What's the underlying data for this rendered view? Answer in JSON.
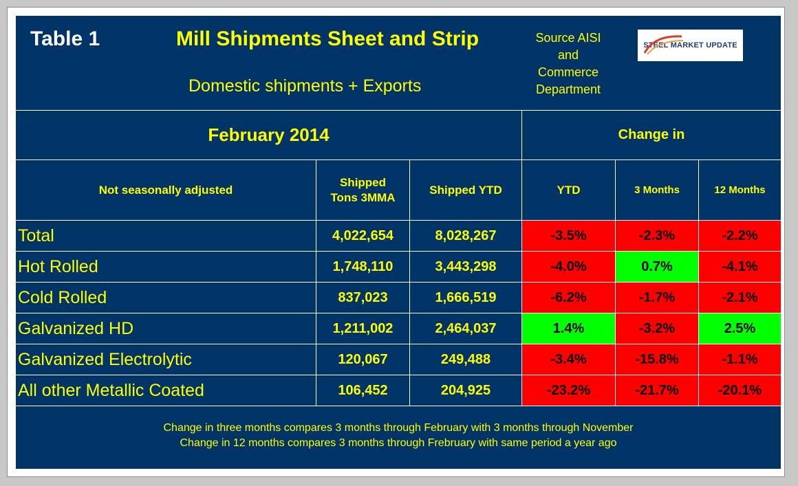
{
  "table_label": "Table 1",
  "title": "Mill Shipments Sheet and Strip",
  "subtitle": "Domestic shipments + Exports",
  "source": [
    "Source AISI",
    "and",
    "Commerce",
    "Department"
  ],
  "logo_text": "STEEL MARKET UPDATE",
  "period": "February 2014",
  "change_header": "Change in",
  "columns": {
    "category": "Not seasonally adjusted",
    "shipped_3mma": [
      "Shipped",
      "Tons 3MMA"
    ],
    "shipped_ytd": "Shipped YTD",
    "ytd": "YTD",
    "m3": "3 Months",
    "m12": "12 Months"
  },
  "rows": [
    {
      "label": "Total",
      "tons_3mma": "4,022,654",
      "ytd_tons": "8,028,267",
      "ytd": "-3.5%",
      "m3": "-2.3%",
      "m12": "-2.2%",
      "ytd_status": "negative",
      "m3_status": "negative",
      "m12_status": "negative"
    },
    {
      "label": "Hot Rolled",
      "tons_3mma": "1,748,110",
      "ytd_tons": "3,443,298",
      "ytd": "-4.0%",
      "m3": "0.7%",
      "m12": "-4.1%",
      "ytd_status": "negative",
      "m3_status": "positive",
      "m12_status": "negative"
    },
    {
      "label": "Cold Rolled",
      "tons_3mma": "837,023",
      "ytd_tons": "1,666,519",
      "ytd": "-6.2%",
      "m3": "-1.7%",
      "m12": "-2.1%",
      "ytd_status": "negative",
      "m3_status": "negative",
      "m12_status": "negative"
    },
    {
      "label": "Galvanized HD",
      "tons_3mma": "1,211,002",
      "ytd_tons": "2,464,037",
      "ytd": "1.4%",
      "m3": "-3.2%",
      "m12": "2.5%",
      "ytd_status": "positive",
      "m3_status": "negative",
      "m12_status": "positive"
    },
    {
      "label": "Galvanized Electrolytic",
      "tons_3mma": "120,067",
      "ytd_tons": "249,488",
      "ytd": "-3.4%",
      "m3": "-15.8%",
      "m12": "-1.1%",
      "ytd_status": "negative",
      "m3_status": "negative",
      "m12_status": "negative"
    },
    {
      "label": "All other Metallic Coated",
      "tons_3mma": "106,452",
      "ytd_tons": "204,925",
      "ytd": "-23.2%",
      "m3": "-21.7%",
      "m12": "-20.1%",
      "ytd_status": "negative",
      "m3_status": "negative",
      "m12_status": "negative"
    }
  ],
  "notes": [
    "Change in three months compares 3 months through February with 3 months through November",
    "Change in 12 months compares 3 months through Frebruary with same period a year ago"
  ],
  "colors": {
    "background": "#003366",
    "text": "#ffff00",
    "negative": "#ff0000",
    "positive": "#00ff00"
  }
}
